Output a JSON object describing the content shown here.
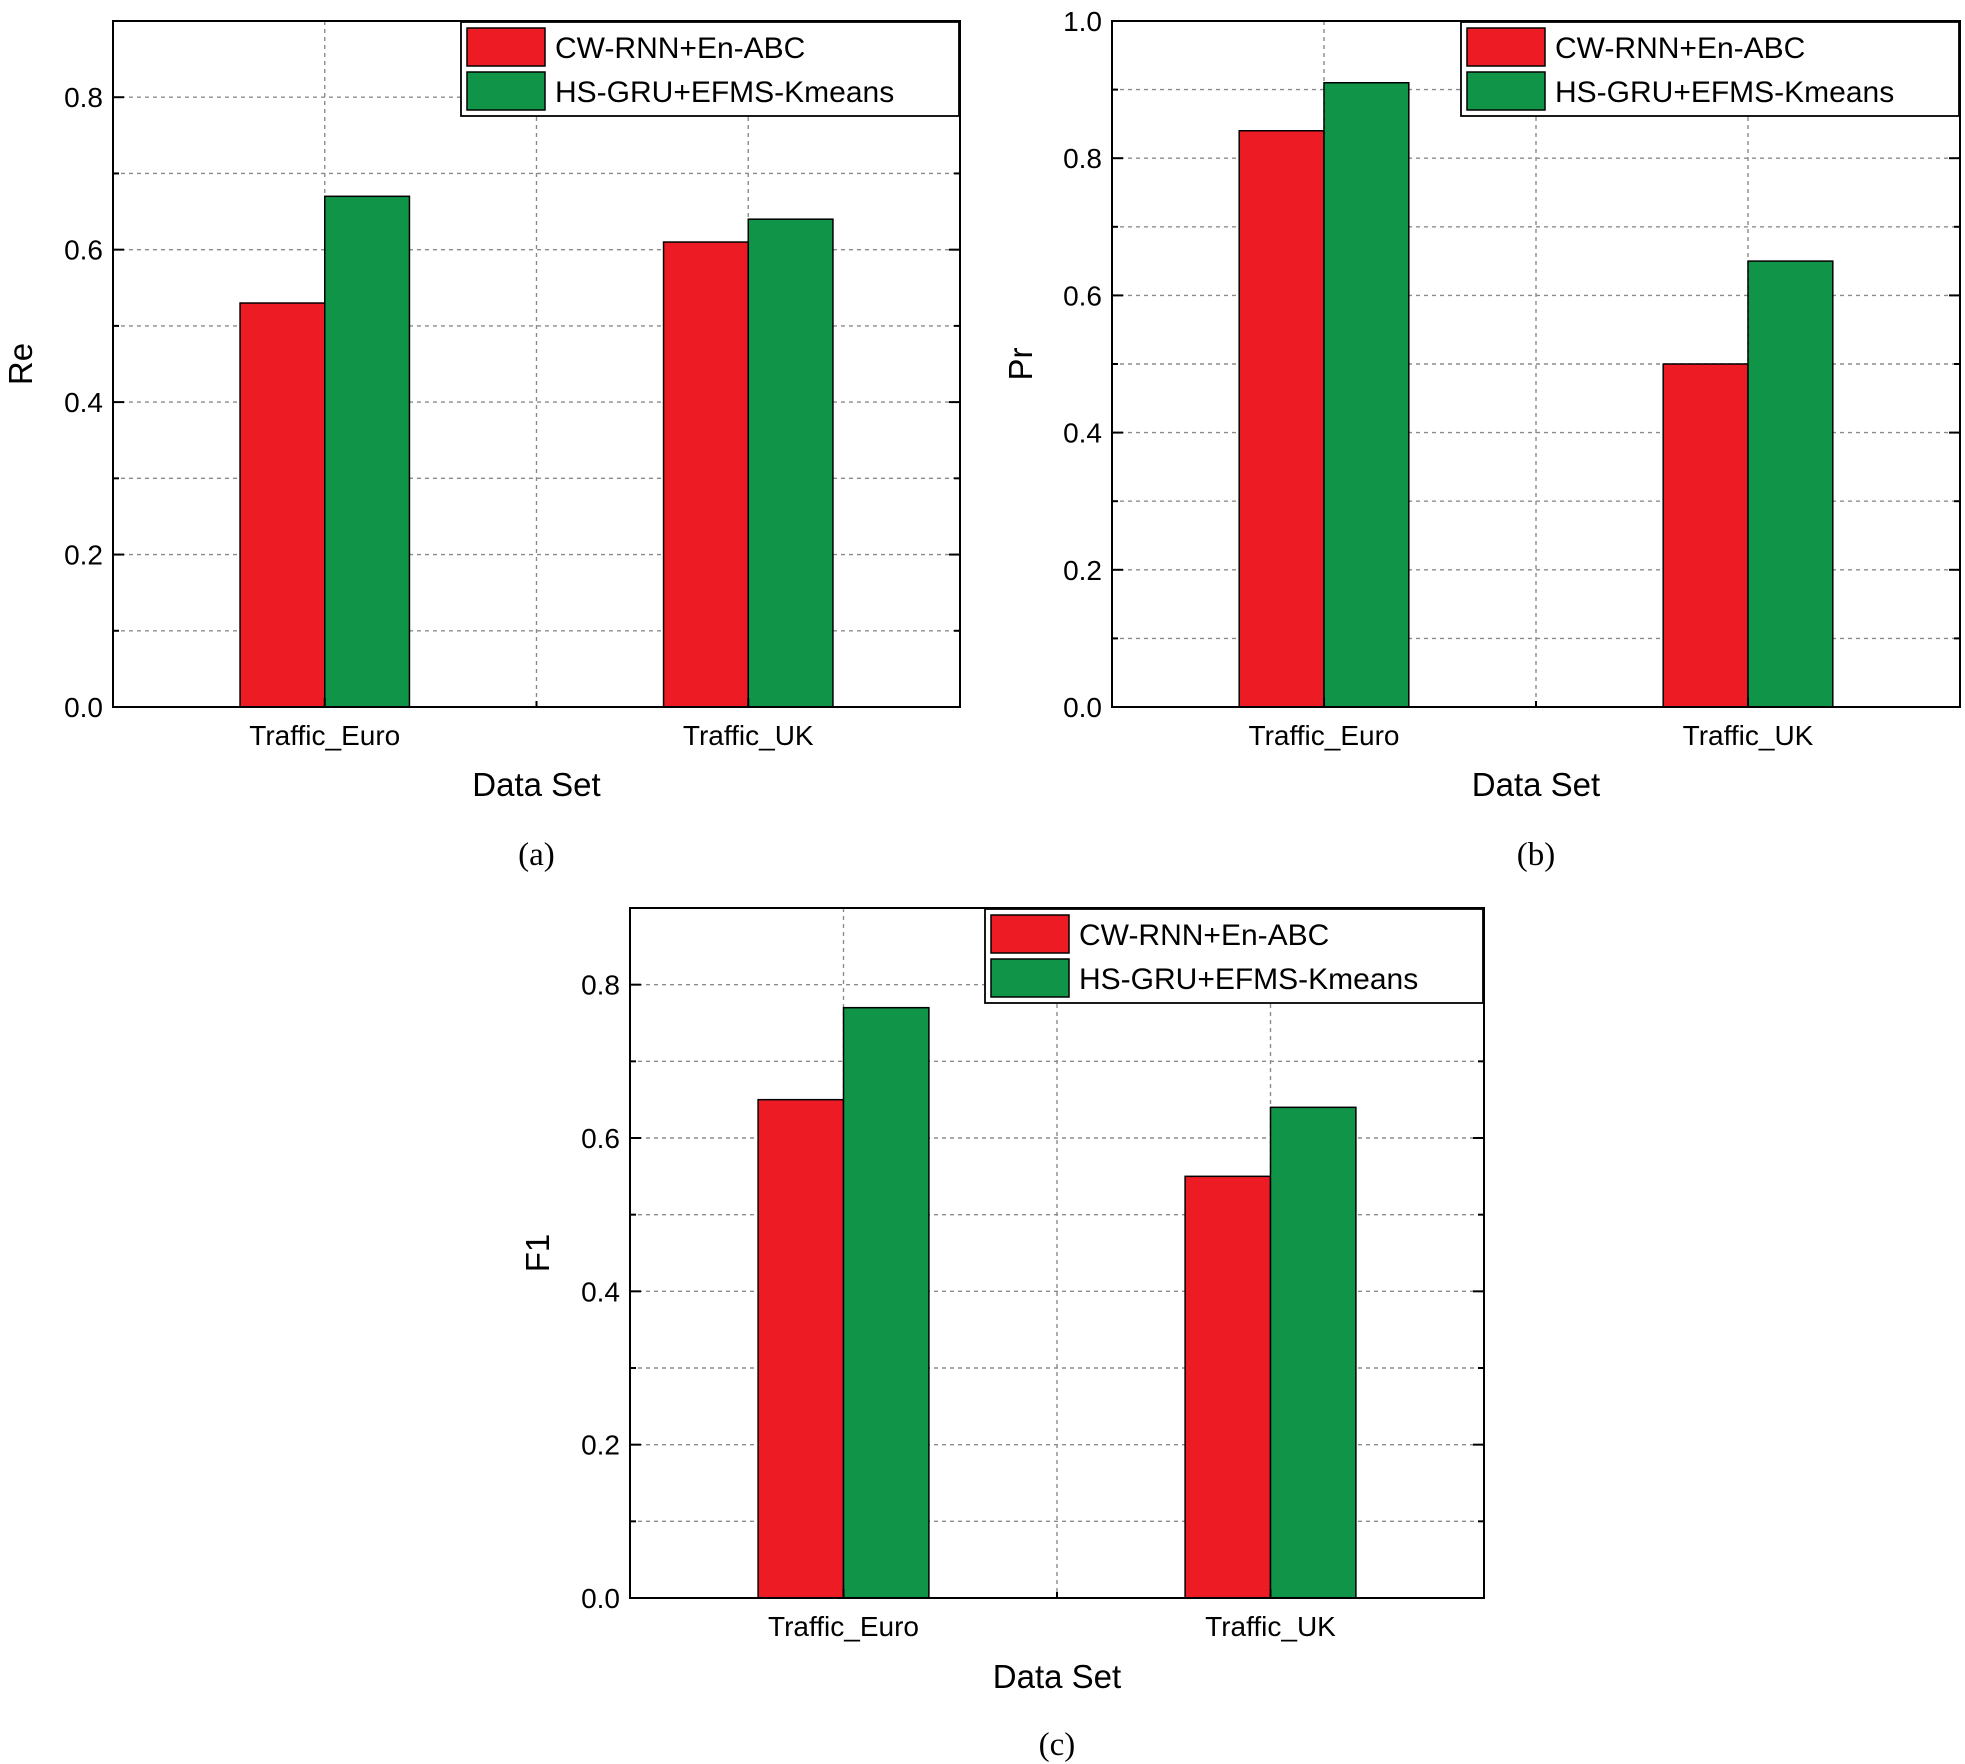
{
  "colors": {
    "series_red": "#ed1c24",
    "series_green": "#109447",
    "axis": "#000000",
    "grid": "#8c8c8c"
  },
  "chart_data": [
    {
      "type": "bar",
      "panel_label": "(a)",
      "title": "",
      "xlabel": "Data Set",
      "ylabel": "Re",
      "ylim": [
        0,
        0.9
      ],
      "yticks": [
        0.0,
        0.2,
        0.4,
        0.6,
        0.8
      ],
      "ytick_labels": [
        "0.0",
        "0.2",
        "0.4",
        "0.6",
        "0.8"
      ],
      "grid": true,
      "legend_position": "top-right",
      "categories": [
        "Traffic_Euro",
        "Traffic_UK"
      ],
      "series": [
        {
          "name": "CW-RNN+En-ABC",
          "color": "#ed1c24",
          "values": [
            0.53,
            0.61
          ]
        },
        {
          "name": "HS-GRU+EFMS-Kmeans",
          "color": "#109447",
          "values": [
            0.67,
            0.64
          ]
        }
      ]
    },
    {
      "type": "bar",
      "panel_label": "(b)",
      "title": "",
      "xlabel": "Data Set",
      "ylabel": "Pr",
      "ylim": [
        0,
        1.0
      ],
      "yticks": [
        0.0,
        0.2,
        0.4,
        0.6,
        0.8,
        1.0
      ],
      "ytick_labels": [
        "0.0",
        "0.2",
        "0.4",
        "0.6",
        "0.8",
        "1.0"
      ],
      "grid": true,
      "legend_position": "top-right",
      "categories": [
        "Traffic_Euro",
        "Traffic_UK"
      ],
      "series": [
        {
          "name": "CW-RNN+En-ABC",
          "color": "#ed1c24",
          "values": [
            0.84,
            0.5
          ]
        },
        {
          "name": "HS-GRU+EFMS-Kmeans",
          "color": "#109447",
          "values": [
            0.91,
            0.65
          ]
        }
      ]
    },
    {
      "type": "bar",
      "panel_label": "(c)",
      "title": "",
      "xlabel": "Data Set",
      "ylabel": "F1",
      "ylim": [
        0,
        0.9
      ],
      "yticks": [
        0.0,
        0.2,
        0.4,
        0.6,
        0.8
      ],
      "ytick_labels": [
        "0.0",
        "0.2",
        "0.4",
        "0.6",
        "0.8"
      ],
      "grid": true,
      "legend_position": "top-right",
      "categories": [
        "Traffic_Euro",
        "Traffic_UK"
      ],
      "series": [
        {
          "name": "CW-RNN+En-ABC",
          "color": "#ed1c24",
          "values": [
            0.65,
            0.55
          ]
        },
        {
          "name": "HS-GRU+EFMS-Kmeans",
          "color": "#109447",
          "values": [
            0.77,
            0.64
          ]
        }
      ]
    }
  ]
}
